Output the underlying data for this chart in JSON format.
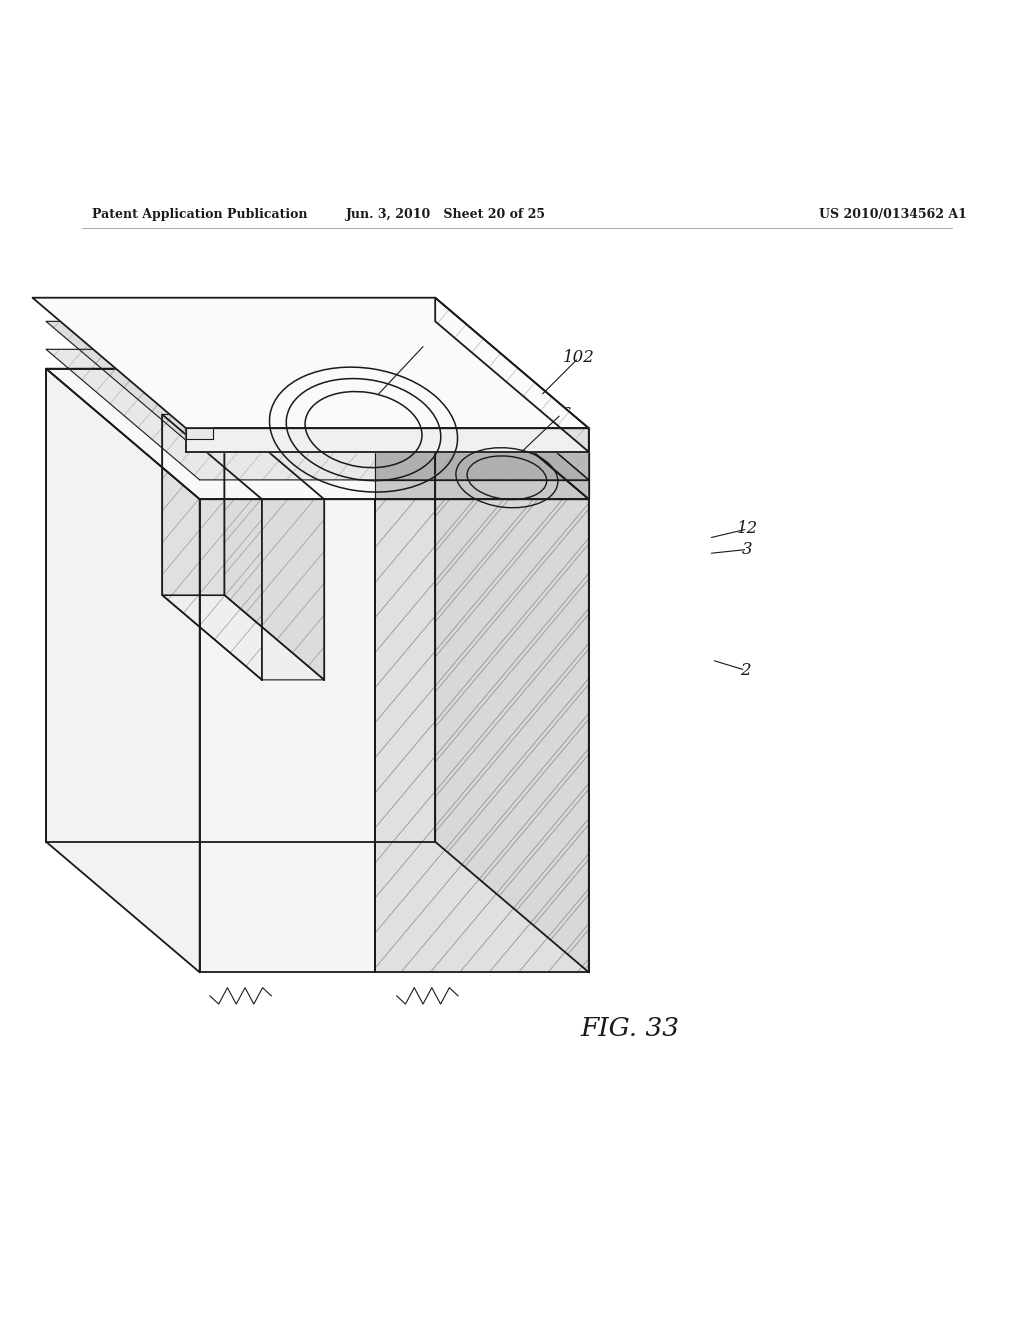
{
  "bg_color": "#ffffff",
  "line_color": "#1a1a1a",
  "header_left": "Patent Application Publication",
  "header_mid": "Jun. 3, 2010   Sheet 20 of 25",
  "header_right": "US 2010/0134562 A1",
  "fig_label": "FIG. 33",
  "lw_main": 1.3,
  "lw_thin": 0.8
}
